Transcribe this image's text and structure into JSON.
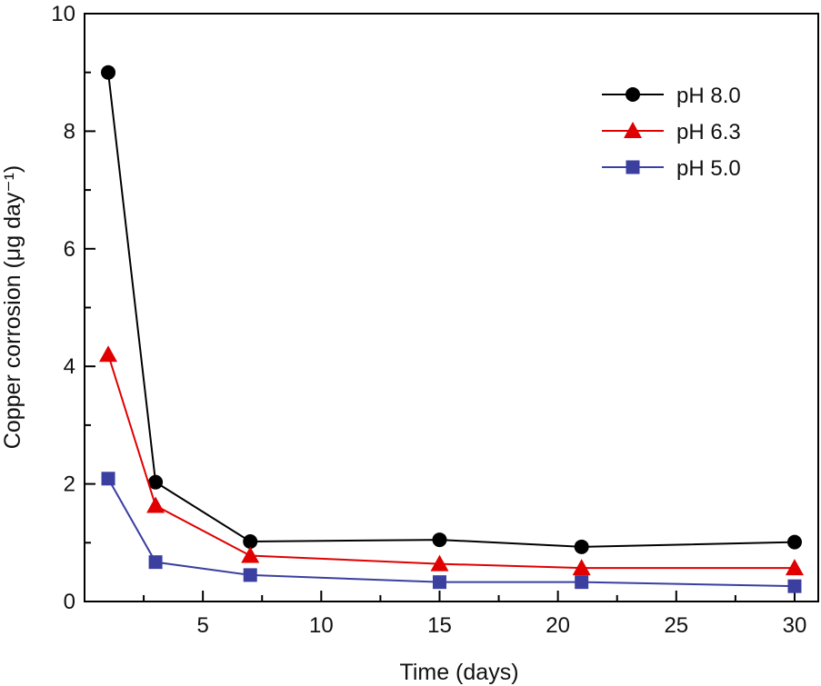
{
  "chart_data": {
    "type": "line",
    "title": "",
    "xlabel": "Time (days)",
    "ylabel": "Copper corrosion (μg day⁻¹)",
    "xlim": [
      0,
      31
    ],
    "ylim": [
      0,
      10
    ],
    "xticks": [
      5,
      10,
      15,
      20,
      25,
      30
    ],
    "xtick_labels": [
      "5",
      "10",
      "15",
      "20",
      "25",
      "30"
    ],
    "yticks": [
      0,
      2,
      4,
      6,
      8,
      10
    ],
    "ytick_labels": [
      "0",
      "2",
      "4",
      "6",
      "8",
      "10"
    ],
    "grid": false,
    "legend_position": "top-right",
    "x": [
      1,
      3,
      7,
      15,
      21,
      30
    ],
    "series": [
      {
        "name": "pH 8.0",
        "marker": "circle",
        "color": "#000000",
        "values": [
          9.0,
          2.03,
          1.02,
          1.05,
          0.93,
          1.01
        ]
      },
      {
        "name": "pH 6.3",
        "marker": "triangle",
        "color": "#e00000",
        "values": [
          4.2,
          1.63,
          0.78,
          0.64,
          0.57,
          0.57
        ]
      },
      {
        "name": "pH 5.0",
        "marker": "square",
        "color": "#3a3fa0",
        "values": [
          2.09,
          0.67,
          0.45,
          0.33,
          0.33,
          0.26
        ]
      }
    ]
  }
}
